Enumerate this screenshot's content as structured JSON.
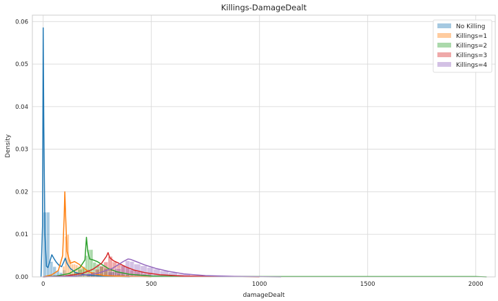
{
  "chart_data": {
    "type": "area",
    "title": "Killings-DamageDealt",
    "xlabel": "damageDealt",
    "ylabel": "Density",
    "xlim": [
      -50,
      2090
    ],
    "ylim": [
      0,
      0.0615
    ],
    "xticks": [
      0,
      500,
      1000,
      1500,
      2000
    ],
    "yticks": [
      0.0,
      0.01,
      0.02,
      0.03,
      0.04,
      0.05,
      0.06
    ],
    "ytick_labels": [
      "0.00",
      "0.01",
      "0.02",
      "0.03",
      "0.04",
      "0.05",
      "0.06"
    ],
    "grid": true,
    "legend_position": "top-right",
    "series": [
      {
        "name": "No Killing",
        "color": "#1f77b4",
        "hist": [
          [
            0,
            15,
            0.0152
          ],
          [
            15,
            30,
            0.0152
          ],
          [
            30,
            45,
            0.0036
          ],
          [
            45,
            60,
            0.0024
          ],
          [
            60,
            75,
            0.0014
          ],
          [
            75,
            90,
            0.001
          ],
          [
            90,
            105,
            0.0016
          ],
          [
            105,
            120,
            0.0008
          ],
          [
            120,
            135,
            0.0005
          ],
          [
            135,
            150,
            0.0003
          ],
          [
            150,
            165,
            0.0002
          ],
          [
            165,
            180,
            0.0001
          ]
        ],
        "kde": [
          [
            -10,
            0.0
          ],
          [
            -3,
            0.012
          ],
          [
            0,
            0.0585
          ],
          [
            3,
            0.035
          ],
          [
            8,
            0.01
          ],
          [
            15,
            0.0025
          ],
          [
            22,
            0.0022
          ],
          [
            30,
            0.0035
          ],
          [
            40,
            0.0052
          ],
          [
            50,
            0.0043
          ],
          [
            60,
            0.0035
          ],
          [
            72,
            0.0028
          ],
          [
            85,
            0.0024
          ],
          [
            95,
            0.0035
          ],
          [
            102,
            0.0044
          ],
          [
            110,
            0.0032
          ],
          [
            125,
            0.002
          ],
          [
            150,
            0.001
          ],
          [
            200,
            0.0004
          ],
          [
            300,
            0.0001
          ],
          [
            400,
            0.0
          ]
        ]
      },
      {
        "name": "Killings=1",
        "color": "#ff7f0e",
        "hist": [
          [
            90,
            100,
            0.0025
          ],
          [
            100,
            110,
            0.0095
          ],
          [
            110,
            120,
            0.01
          ],
          [
            120,
            130,
            0.004
          ],
          [
            130,
            140,
            0.003
          ],
          [
            140,
            150,
            0.003
          ],
          [
            150,
            160,
            0.0028
          ],
          [
            160,
            170,
            0.0025
          ],
          [
            170,
            180,
            0.0022
          ],
          [
            180,
            190,
            0.002
          ],
          [
            190,
            200,
            0.0016
          ],
          [
            200,
            210,
            0.0018
          ],
          [
            210,
            220,
            0.0012
          ],
          [
            220,
            240,
            0.0008
          ],
          [
            240,
            260,
            0.0005
          ],
          [
            260,
            300,
            0.0002
          ]
        ],
        "kde": [
          [
            0,
            0.0
          ],
          [
            40,
            0.0005
          ],
          [
            70,
            0.0015
          ],
          [
            90,
            0.005
          ],
          [
            97,
            0.014
          ],
          [
            100,
            0.02
          ],
          [
            104,
            0.014
          ],
          [
            110,
            0.006
          ],
          [
            125,
            0.0032
          ],
          [
            145,
            0.0036
          ],
          [
            165,
            0.003
          ],
          [
            185,
            0.0022
          ],
          [
            205,
            0.0014
          ],
          [
            230,
            0.0008
          ],
          [
            280,
            0.0003
          ],
          [
            400,
            0.0001
          ],
          [
            500,
            0.0
          ]
        ]
      },
      {
        "name": "Killings=2",
        "color": "#2ca02c",
        "hist": [
          [
            100,
            120,
            0.0005
          ],
          [
            120,
            140,
            0.0008
          ],
          [
            140,
            160,
            0.0012
          ],
          [
            160,
            180,
            0.0018
          ],
          [
            180,
            195,
            0.0024
          ],
          [
            195,
            205,
            0.005
          ],
          [
            205,
            215,
            0.0064
          ],
          [
            215,
            230,
            0.0064
          ],
          [
            230,
            245,
            0.0034
          ],
          [
            245,
            260,
            0.003
          ],
          [
            260,
            280,
            0.0026
          ],
          [
            280,
            300,
            0.002
          ],
          [
            300,
            320,
            0.0016
          ],
          [
            320,
            340,
            0.0012
          ],
          [
            340,
            370,
            0.0008
          ],
          [
            370,
            400,
            0.0005
          ]
        ],
        "kde": [
          [
            0,
            0.0
          ],
          [
            60,
            0.0002
          ],
          [
            120,
            0.0008
          ],
          [
            170,
            0.0022
          ],
          [
            193,
            0.004
          ],
          [
            200,
            0.0093
          ],
          [
            206,
            0.006
          ],
          [
            215,
            0.0042
          ],
          [
            230,
            0.004
          ],
          [
            250,
            0.0036
          ],
          [
            275,
            0.0028
          ],
          [
            300,
            0.002
          ],
          [
            340,
            0.0012
          ],
          [
            400,
            0.0006
          ],
          [
            500,
            0.0002
          ],
          [
            650,
            8e-05
          ],
          [
            2000,
            8e-05
          ],
          [
            2050,
            0.0
          ]
        ]
      },
      {
        "name": "Killings=3",
        "color": "#d62728",
        "hist": [
          [
            200,
            220,
            0.0008
          ],
          [
            220,
            240,
            0.0012
          ],
          [
            240,
            260,
            0.0018
          ],
          [
            260,
            280,
            0.0025
          ],
          [
            280,
            300,
            0.0035
          ],
          [
            300,
            320,
            0.0048
          ],
          [
            320,
            340,
            0.0035
          ],
          [
            340,
            360,
            0.003
          ],
          [
            360,
            380,
            0.0026
          ],
          [
            380,
            400,
            0.0022
          ],
          [
            400,
            430,
            0.0016
          ],
          [
            430,
            460,
            0.0012
          ],
          [
            460,
            500,
            0.0007
          ],
          [
            500,
            550,
            0.0003
          ]
        ],
        "kde": [
          [
            0,
            0.0
          ],
          [
            100,
            0.0002
          ],
          [
            180,
            0.0008
          ],
          [
            230,
            0.0018
          ],
          [
            270,
            0.0032
          ],
          [
            292,
            0.0048
          ],
          [
            300,
            0.0057
          ],
          [
            308,
            0.0045
          ],
          [
            325,
            0.0038
          ],
          [
            350,
            0.0032
          ],
          [
            380,
            0.0024
          ],
          [
            420,
            0.0016
          ],
          [
            470,
            0.001
          ],
          [
            540,
            0.0005
          ],
          [
            650,
            0.0002
          ],
          [
            800,
            0.0001
          ],
          [
            1000,
            0.0
          ]
        ]
      },
      {
        "name": "Killings=4",
        "color": "#9467bd",
        "hist": [
          [
            300,
            330,
            0.0012
          ],
          [
            330,
            360,
            0.002
          ],
          [
            360,
            380,
            0.0028
          ],
          [
            380,
            400,
            0.0038
          ],
          [
            400,
            420,
            0.0036
          ],
          [
            420,
            450,
            0.003
          ],
          [
            450,
            480,
            0.0026
          ],
          [
            480,
            510,
            0.0022
          ],
          [
            510,
            540,
            0.0018
          ],
          [
            540,
            580,
            0.0014
          ],
          [
            580,
            620,
            0.001
          ],
          [
            620,
            680,
            0.0006
          ],
          [
            680,
            750,
            0.0003
          ]
        ],
        "kde": [
          [
            0,
            0.0
          ],
          [
            150,
            0.0002
          ],
          [
            250,
            0.0008
          ],
          [
            320,
            0.002
          ],
          [
            370,
            0.0036
          ],
          [
            392,
            0.0042
          ],
          [
            405,
            0.0041
          ],
          [
            430,
            0.0036
          ],
          [
            470,
            0.0028
          ],
          [
            520,
            0.002
          ],
          [
            580,
            0.0013
          ],
          [
            650,
            0.0007
          ],
          [
            750,
            0.0003
          ],
          [
            900,
            0.0001
          ],
          [
            1100,
            0.0
          ]
        ]
      }
    ]
  }
}
